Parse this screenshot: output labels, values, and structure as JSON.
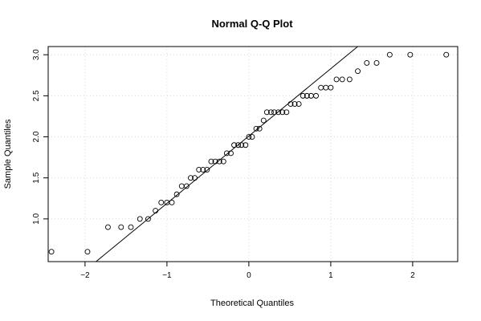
{
  "chart_data": {
    "type": "scatter",
    "title": "Normal Q-Q Plot",
    "xlabel": "Theoretical Quantiles",
    "ylabel": "Sample Quantiles",
    "xlim": [
      -2.45,
      2.55
    ],
    "ylim": [
      0.48,
      3.1
    ],
    "x_ticks": [
      -2,
      -1,
      0,
      1,
      2
    ],
    "x_tick_labels": [
      "−2",
      "−1",
      "0",
      "1",
      "2"
    ],
    "y_ticks": [
      1.0,
      1.5,
      2.0,
      2.5,
      3.0
    ],
    "y_tick_labels": [
      "1.0",
      "1.5",
      "2.0",
      "2.5",
      "3.0"
    ],
    "grid": true,
    "reference_line": {
      "slope": 0.82,
      "intercept": 2.01
    },
    "points": {
      "x": [
        -2.41,
        -1.97,
        -1.72,
        -1.56,
        -1.44,
        -1.33,
        -1.23,
        -1.14,
        -1.07,
        -1.0,
        -0.94,
        -0.88,
        -0.82,
        -0.76,
        -0.71,
        -0.66,
        -0.61,
        -0.56,
        -0.51,
        -0.46,
        -0.41,
        -0.36,
        -0.31,
        -0.27,
        -0.22,
        -0.18,
        -0.13,
        -0.09,
        -0.04,
        0.0,
        0.04,
        0.09,
        0.13,
        0.18,
        0.22,
        0.27,
        0.31,
        0.36,
        0.41,
        0.46,
        0.51,
        0.56,
        0.61,
        0.66,
        0.71,
        0.76,
        0.82,
        0.88,
        0.94,
        1.0,
        1.07,
        1.14,
        1.23,
        1.33,
        1.44,
        1.56,
        1.72,
        1.97,
        2.41
      ],
      "y": [
        0.6,
        0.6,
        0.9,
        0.9,
        0.9,
        1.0,
        1.0,
        1.1,
        1.2,
        1.2,
        1.2,
        1.3,
        1.4,
        1.4,
        1.5,
        1.5,
        1.6,
        1.6,
        1.6,
        1.7,
        1.7,
        1.7,
        1.7,
        1.8,
        1.8,
        1.9,
        1.9,
        1.9,
        1.9,
        2.0,
        2.0,
        2.1,
        2.1,
        2.2,
        2.3,
        2.3,
        2.3,
        2.3,
        2.3,
        2.3,
        2.4,
        2.4,
        2.4,
        2.5,
        2.5,
        2.5,
        2.5,
        2.6,
        2.6,
        2.6,
        2.7,
        2.7,
        2.7,
        2.8,
        2.9,
        2.9,
        3.0,
        3.0,
        3.0
      ]
    }
  }
}
